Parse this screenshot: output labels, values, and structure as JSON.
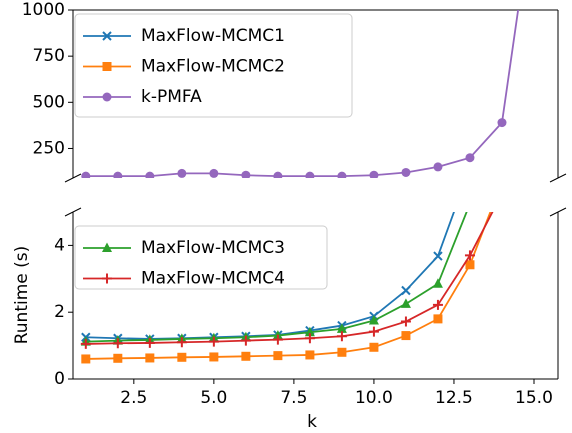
{
  "chart_data": {
    "type": "line",
    "xlabel": "k",
    "ylabel": "Runtime (s)",
    "x": [
      1,
      2,
      3,
      4,
      5,
      6,
      7,
      8,
      9,
      10,
      11,
      12,
      13,
      14,
      15
    ],
    "xlim": [
      0.6,
      15.75
    ],
    "xticks": [
      2.5,
      {
        "value": 5,
        "label": "5.0"
      },
      7.5,
      {
        "value": 10,
        "label": "10.0"
      },
      12.5,
      {
        "value": 15,
        "label": "15.0"
      }
    ],
    "panels": [
      {
        "ylim": [
          90,
          1000
        ],
        "yticks": [
          250,
          500,
          750,
          1000
        ]
      },
      {
        "ylim": [
          0,
          5
        ],
        "yticks": [
          0,
          2,
          4
        ]
      }
    ],
    "series": [
      {
        "name": "MaxFlow-MCMC1",
        "color": "#1f77b4",
        "marker": "x",
        "legend_panel": 0,
        "values": [
          1.25,
          1.22,
          1.2,
          1.22,
          1.25,
          1.28,
          1.32,
          1.45,
          1.6,
          1.88,
          2.65,
          3.68,
          6.32,
          null,
          null
        ]
      },
      {
        "name": "MaxFlow-MCMC2",
        "color": "#ff7f0e",
        "marker": "s",
        "legend_panel": 0,
        "values": [
          0.6,
          0.62,
          0.63,
          0.65,
          0.66,
          0.68,
          0.7,
          0.72,
          0.8,
          0.95,
          1.3,
          1.8,
          3.42,
          5.9,
          null
        ]
      },
      {
        "name": "k-PMFA",
        "color": "#9467bd",
        "marker": "o",
        "legend_panel": 0,
        "values": [
          100,
          100,
          100,
          115,
          115,
          105,
          100,
          100,
          100,
          105,
          120,
          150,
          200,
          390,
          1600
        ]
      },
      {
        "name": "MaxFlow-MCMC3",
        "color": "#2ca02c",
        "marker": "^",
        "legend_panel": 1,
        "values": [
          1.12,
          1.15,
          1.17,
          1.2,
          1.22,
          1.25,
          1.3,
          1.4,
          1.5,
          1.75,
          2.25,
          2.85,
          5.25,
          null,
          null
        ]
      },
      {
        "name": "MaxFlow-MCMC4",
        "color": "#d62728",
        "marker": "+",
        "legend_panel": 1,
        "values": [
          1.05,
          1.07,
          1.08,
          1.1,
          1.12,
          1.15,
          1.18,
          1.22,
          1.28,
          1.42,
          1.72,
          2.22,
          3.7,
          5.55,
          null
        ]
      }
    ]
  }
}
